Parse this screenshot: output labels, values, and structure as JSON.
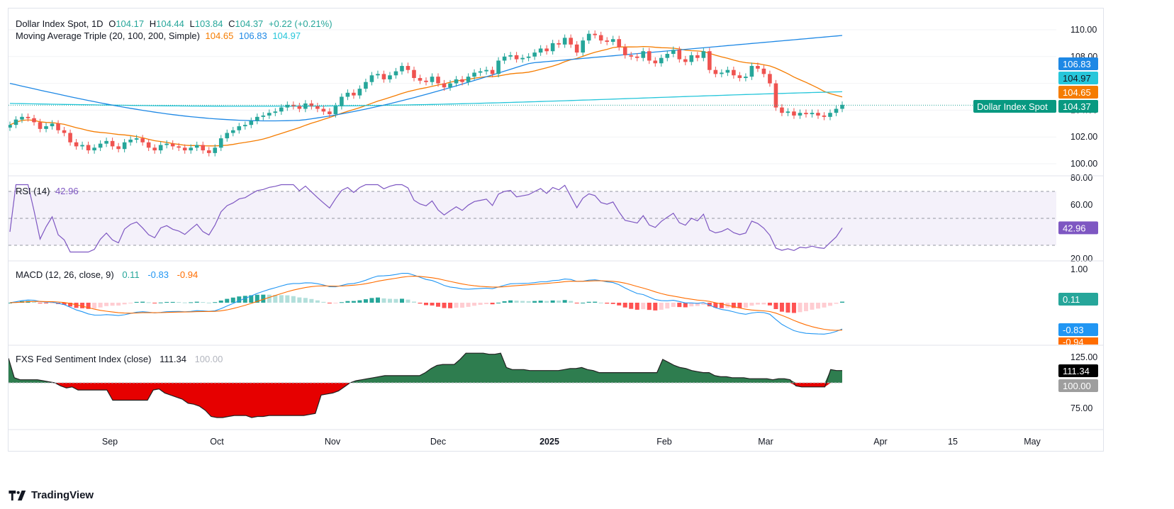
{
  "colors": {
    "up": "#26a69a",
    "down": "#ef5350",
    "ma20": "#f57c00",
    "ma100": "#1e88e5",
    "ma200": "#26c6da",
    "rsi": "#7e57c2",
    "macd": "#2196f3",
    "signal": "#ff6d00",
    "sentiment_up": "#2e7d4f",
    "sentiment_down": "#e60000"
  },
  "main_legend": {
    "symbol": "Dollar Index Spot, 1D",
    "o_label": "O",
    "o": "104.17",
    "h_label": "H",
    "h": "104.44",
    "l_label": "L",
    "l": "103.84",
    "c_label": "C",
    "c": "104.37",
    "change": "+0.22 (+0.21%)",
    "ma_title": "Moving Average Triple (20, 100, 200, Simple)",
    "ma20": "104.65",
    "ma100": "106.83",
    "ma200": "104.97"
  },
  "price_badges": {
    "ma100": "106.83",
    "ma200": "104.97",
    "ma20": "104.65",
    "close": "104.37",
    "close_label": "Dollar Index Spot"
  },
  "rsi_legend": {
    "title": "RSI (14)",
    "value": "42.96"
  },
  "macd_legend": {
    "title": "MACD (12, 26, close, 9)",
    "hist": "0.11",
    "macd": "-0.83",
    "signal": "-0.94"
  },
  "fxs_legend": {
    "title": "FXS Fed Sentiment Index (close)",
    "value": "111.34",
    "base": "100.00"
  },
  "x_axis": [
    "Sep",
    "Oct",
    "Nov",
    "Dec",
    "2025",
    "Feb",
    "Mar",
    "Apr",
    "15",
    "May"
  ],
  "brand": "TradingView",
  "chart_data": [
    {
      "type": "candlestick",
      "title": "Dollar Index Spot, 1D",
      "ylim": [
        99.0,
        111.0
      ],
      "y_ticks": [
        "110.00",
        "108.00",
        "104.00",
        "102.00",
        "100.00"
      ],
      "x_axis_labels": [
        "Sep",
        "Oct",
        "Nov",
        "Dec",
        "2025",
        "Feb",
        "Mar",
        "Apr",
        "15",
        "May"
      ],
      "close": [
        102.9,
        103.3,
        103.5,
        103.4,
        103.1,
        102.6,
        102.8,
        103.0,
        102.5,
        102.3,
        101.6,
        101.3,
        101.4,
        101.0,
        101.2,
        101.5,
        101.7,
        101.3,
        101.1,
        101.6,
        101.8,
        101.9,
        101.6,
        101.2,
        101.0,
        101.4,
        101.5,
        101.3,
        101.2,
        101.0,
        101.2,
        101.4,
        101.0,
        100.8,
        101.2,
        101.9,
        102.3,
        102.5,
        102.8,
        102.9,
        103.2,
        103.5,
        103.6,
        103.8,
        103.9,
        104.2,
        104.4,
        104.3,
        104.1,
        104.5,
        104.3,
        104.1,
        103.9,
        103.7,
        104.3,
        105.0,
        105.3,
        105.1,
        105.6,
        106.1,
        106.6,
        106.7,
        106.3,
        106.6,
        106.9,
        107.3,
        107.0,
        106.4,
        106.2,
        106.1,
        106.5,
        106.0,
        105.7,
        106.0,
        106.3,
        106.1,
        106.5,
        106.8,
        106.9,
        107.0,
        106.7,
        107.7,
        108.0,
        108.1,
        107.8,
        107.9,
        108.0,
        108.3,
        108.6,
        108.4,
        109.0,
        108.9,
        109.4,
        108.9,
        108.3,
        109.2,
        109.7,
        109.6,
        109.2,
        109.1,
        109.3,
        108.7,
        108.1,
        108.0,
        107.9,
        108.4,
        107.7,
        107.5,
        107.9,
        108.2,
        108.5,
        107.8,
        107.6,
        108.1,
        107.9,
        108.4,
        107.0,
        106.7,
        106.8,
        107.0,
        106.6,
        106.4,
        106.5,
        107.3,
        107.1,
        106.7,
        106.0,
        104.2,
        103.8,
        103.9,
        103.6,
        103.8,
        103.7,
        103.8,
        103.6,
        103.5,
        103.8,
        104.1,
        104.4
      ]
    },
    {
      "type": "line",
      "title": "RSI (14)",
      "ylim": [
        20,
        80
      ],
      "y_ticks": [
        "80.00",
        "60.00",
        "20.00"
      ],
      "bands": [
        30,
        50,
        70
      ],
      "last": 42.96
    },
    {
      "type": "line",
      "title": "MACD (12, 26, close, 9)",
      "series": [
        {
          "name": "MACD",
          "last": -0.83
        },
        {
          "name": "Signal",
          "last": -0.94
        },
        {
          "name": "Histogram",
          "last": 0.11
        }
      ],
      "y_ticks": [
        "1.00"
      ]
    },
    {
      "type": "area",
      "title": "FXS Fed Sentiment Index (close)",
      "baseline": 100.0,
      "ylim": [
        60,
        135
      ],
      "y_ticks": [
        "125.00",
        "75.00"
      ],
      "values": [
        124,
        105,
        103,
        103,
        103,
        103,
        102,
        101,
        100,
        97,
        95,
        96,
        93,
        93,
        93,
        93,
        93,
        93,
        83,
        83,
        83,
        83,
        83,
        83,
        83,
        93,
        94,
        90,
        88,
        86,
        84,
        80,
        79,
        77,
        73,
        67,
        66,
        66,
        67,
        68,
        68,
        68,
        66,
        67,
        67,
        68,
        68,
        68,
        68,
        68,
        68,
        68,
        69,
        70,
        88,
        89,
        90,
        92,
        96,
        100,
        102,
        103,
        104,
        105,
        106,
        107,
        107,
        107,
        107,
        107,
        107,
        107,
        110,
        114,
        117,
        118,
        118,
        118,
        123,
        129,
        129,
        129,
        129,
        128,
        128,
        129,
        115,
        113,
        113,
        113,
        112,
        112,
        112,
        112,
        112,
        112,
        113,
        114,
        114,
        115,
        113,
        112,
        110,
        110,
        110,
        110,
        110,
        110,
        110,
        110,
        110,
        110,
        110,
        123,
        120,
        117,
        115,
        114,
        112,
        111,
        110,
        110,
        107,
        106,
        106,
        105,
        105,
        105,
        104,
        104,
        104,
        104,
        103,
        104,
        104,
        103,
        97,
        96,
        96,
        96,
        96,
        96,
        113,
        112,
        112
      ]
    }
  ]
}
